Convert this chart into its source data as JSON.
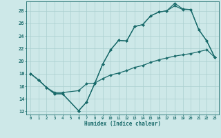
{
  "xlabel": "Humidex (Indice chaleur)",
  "xlim": [
    -0.5,
    23.5
  ],
  "ylim": [
    11.5,
    29.5
  ],
  "xticks": [
    0,
    1,
    2,
    3,
    4,
    5,
    6,
    7,
    8,
    9,
    10,
    11,
    12,
    13,
    14,
    15,
    16,
    17,
    18,
    19,
    20,
    21,
    22,
    23
  ],
  "yticks": [
    12,
    14,
    16,
    18,
    20,
    22,
    24,
    26,
    28
  ],
  "bg_color": "#cde8e8",
  "line_color": "#1a6b6b",
  "grid_color": "#aacfcf",
  "series1_x": [
    0,
    1,
    2,
    3,
    4,
    6,
    7,
    8,
    9,
    10,
    11,
    12,
    13,
    14,
    15,
    16,
    17,
    18,
    19,
    20,
    21,
    22,
    23
  ],
  "series1_y": [
    18,
    17,
    15.8,
    14.8,
    14.8,
    12.1,
    13.5,
    16.4,
    19.5,
    21.8,
    23.3,
    23.2,
    25.5,
    25.8,
    27.2,
    27.8,
    28.0,
    29.2,
    28.3,
    28.2,
    25.0,
    23.2,
    20.6
  ],
  "series2_x": [
    0,
    1,
    2,
    3,
    4,
    6,
    7,
    8,
    9,
    10,
    11,
    12,
    13,
    14,
    15,
    16,
    17,
    18,
    19,
    20,
    21,
    22,
    23
  ],
  "series2_y": [
    18,
    17,
    15.8,
    14.8,
    14.8,
    12.1,
    13.5,
    16.4,
    19.5,
    21.8,
    23.3,
    23.2,
    25.5,
    25.8,
    27.2,
    27.8,
    28.0,
    28.8,
    28.2,
    28.2,
    25.0,
    23.2,
    20.6
  ],
  "series3_x": [
    0,
    1,
    2,
    3,
    4,
    6,
    7,
    8,
    9,
    10,
    11,
    12,
    13,
    14,
    15,
    16,
    17,
    18,
    19,
    20,
    21,
    22,
    23
  ],
  "series3_y": [
    18,
    17,
    15.8,
    15.0,
    15.0,
    15.3,
    16.4,
    16.5,
    17.2,
    17.8,
    18.1,
    18.5,
    19.0,
    19.3,
    19.8,
    20.2,
    20.5,
    20.8,
    21.0,
    21.2,
    21.5,
    21.8,
    20.6
  ],
  "marker": "D",
  "markersize": 2.0,
  "linewidth": 0.9
}
